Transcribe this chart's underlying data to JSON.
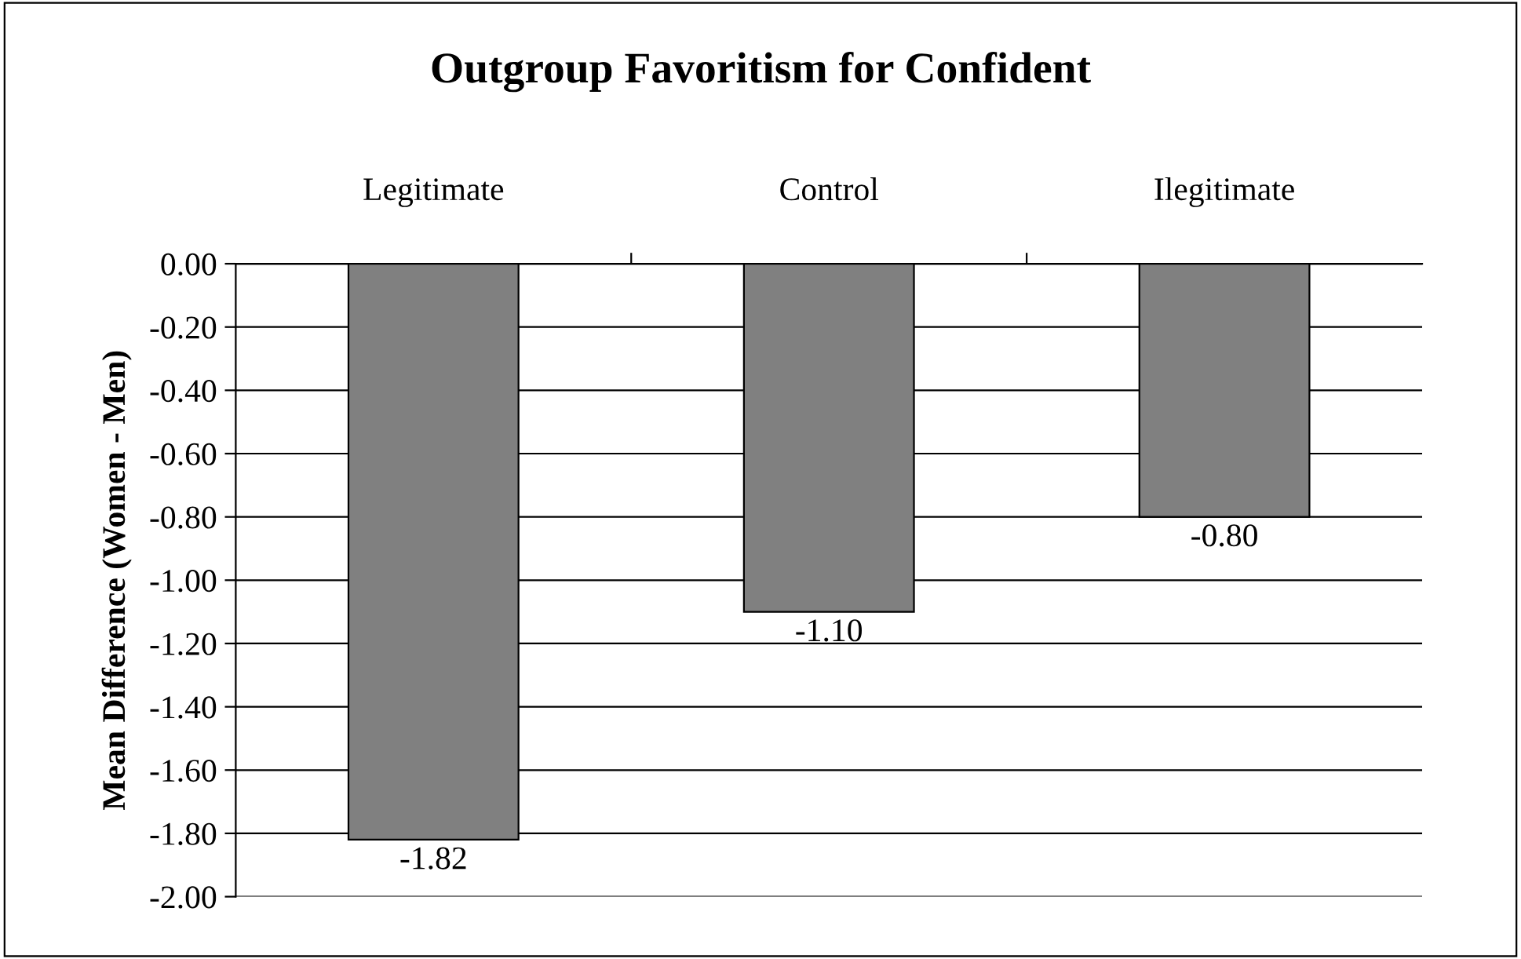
{
  "chart_data": {
    "type": "bar",
    "title": "Outgroup Favoritism for Confident",
    "ylabel": "Mean Difference (Women - Men)",
    "categories": [
      "Legitimate",
      "Control",
      "Ilegitimate"
    ],
    "values": [
      -1.82,
      -1.1,
      -0.8
    ],
    "value_labels": [
      "-1.82",
      "-1.10",
      "-0.80"
    ],
    "color": "#808080",
    "ylim": [
      -2,
      0
    ],
    "yticks": [
      {
        "value": 0,
        "label": "0.00"
      },
      {
        "value": -0.2,
        "label": "-0.20"
      },
      {
        "value": -0.4,
        "label": "-0.40"
      },
      {
        "value": -0.6,
        "label": "-0.60"
      },
      {
        "value": -0.8,
        "label": "-0.80"
      },
      {
        "value": -1.0,
        "label": "-1.00"
      },
      {
        "value": -1.2,
        "label": "-1.20"
      },
      {
        "value": -1.4,
        "label": "-1.40"
      },
      {
        "value": -1.6,
        "label": "-1.60"
      },
      {
        "value": -1.8,
        "label": "-1.80"
      },
      {
        "value": -2.0,
        "label": "-2.00"
      }
    ],
    "grid": "y"
  }
}
